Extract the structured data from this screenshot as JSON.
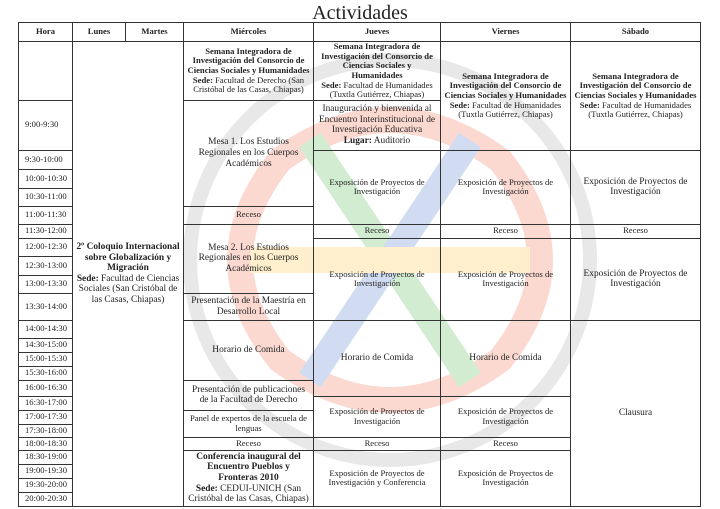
{
  "title": "Actividades",
  "headers": [
    "Hora",
    "Lunes",
    "Martes",
    "Miércoles",
    "Jueves",
    "Viernes",
    "Sábado"
  ],
  "hours": [
    "9:00-9:30",
    "9:30-10:00",
    "10:00-10:30",
    "10:30-11:00",
    "11:00-11:30",
    "11:30-12:00",
    "12:00-12:30",
    "12:30-13:00",
    "13:00-13:30",
    "13:30-14:00",
    "14:00-14:30",
    "14:30-15:00",
    "15:00-15:30",
    "15:30-16:00",
    "16:00-16:30",
    "16:30-17:00",
    "17:00-17:30",
    "17:30-18:00",
    "18:00-18:30",
    "18:30-19:00",
    "19:00-19:30",
    "19:30-20:00",
    "20:00-20:30"
  ],
  "lunes_martes": {
    "title": "2º Coloquio Internacional sobre Globalización y Migración",
    "sede_label": "Sede:",
    "sede": "Facultad de Ciencias Sociales (San Cristóbal de las Casas, Chiapas)"
  },
  "miercoles": [
    {
      "heading": "Semana Integradora de Investigación del Consorcio de Ciencias Sociales y Humanidades",
      "sede_label": "Sede:",
      "sede": "Facultad de Derecho (San Cristóbal de las Casas, Chiapas)"
    },
    "Mesa 1. Los Estudios Regionales en los Cuerpos Académicos",
    "Receso",
    "Mesa 2. Los Estudios Regionales en los Cuerpos Académicos",
    "Presentación de la Maestría en Desarrollo Local",
    "Horario de Comida",
    "Presentación de publicaciones de la Facultad de Derecho",
    "Panel de expertos de la escuela de lenguas",
    "Receso",
    {
      "title": "Conferencia inaugural del Encuentro Pueblos y Fronteras 2010",
      "sede_label": "Sede:",
      "sede": "CEDUI-UNICH (San Cristóbal de las Casas, Chiapas)"
    }
  ],
  "jueves": [
    {
      "heading": "Semana Integradora de Investigación del Consorcio de Ciencias Sociales y Humanidades",
      "sede_label": "Sede:",
      "sede": "Facultad de Humanidades (Tuxtla Gutiérrez, Chiapas)"
    },
    {
      "text": "Inauguración y bienvenida al Encuentro Interinstitucional de Investigación Educativa",
      "place_label": "Lugar:",
      "place": "Auditorio"
    },
    "Exposición de Proyectos de Investigación",
    "Receso",
    "Exposición de Proyectos de Investigación",
    "Horario de Comida",
    "Exposición de Proyectos de Investigación",
    "Receso",
    "Exposición de Proyectos de Investigación y Conferencia"
  ],
  "viernes": [
    {
      "heading": "Semana Integradora de Investigación del Consorcio de Ciencias Sociales y Humanidades",
      "sede_label": "Sede:",
      "sede": "Facultad de Humanidades (Tuxtla Gutiérrez, Chiapas)"
    },
    "Exposición de Proyectos de Investigación",
    "Receso",
    "Exposición de Proyectos de Investigación",
    "Horario de Comida",
    "Exposición de Proyectos de Investigación",
    "Receso",
    "Exposición de Proyectos de Investigación"
  ],
  "sabado": [
    {
      "heading": "Semana Integradora de Investigación del Consorcio de Ciencias Sociales y Humanidades",
      "sede_label": "Sede:",
      "sede": "Facultad de Humanidades (Tuxtla Gutiérrez, Chiapas)"
    },
    "Exposición de Proyectos de Investigación",
    "Receso",
    "Exposición de Proyectos de Investigación",
    "Clausura"
  ]
}
